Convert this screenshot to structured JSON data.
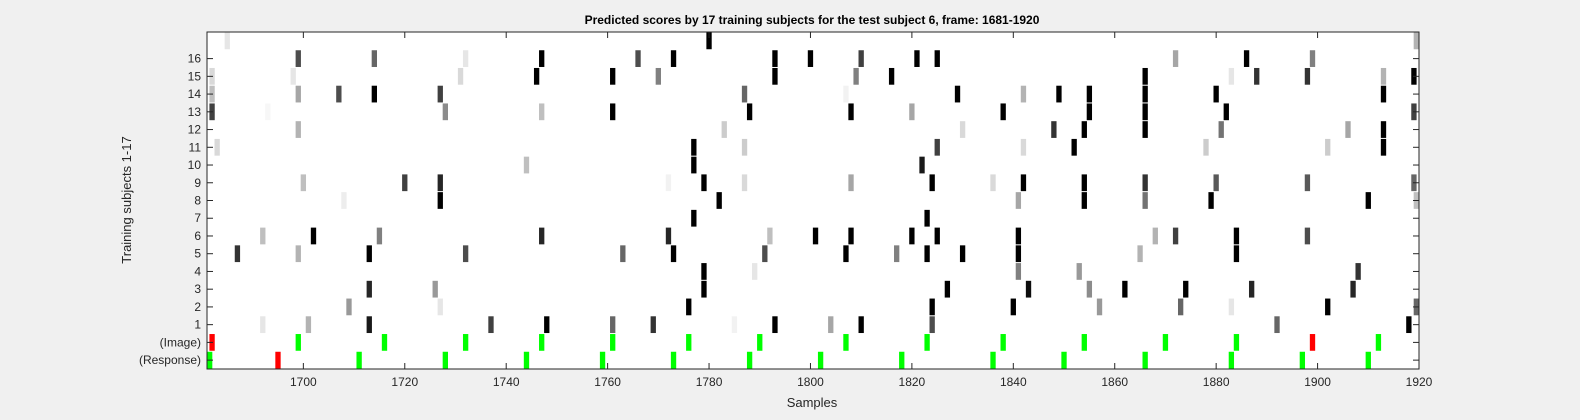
{
  "chart_data": {
    "type": "heatmap",
    "title": "Predicted scores by 17 training subjects for the test subject 6, frame: 1681-1920",
    "xlabel": "Samples",
    "ylabel": "Training subjects 1-17",
    "xlim": [
      1681,
      1920
    ],
    "x_ticks": [
      "1700",
      "1720",
      "1740",
      "1760",
      "1780",
      "1800",
      "1820",
      "1840",
      "1860",
      "1880",
      "1900",
      "1920"
    ],
    "y_tick_labels": [
      "(Response)",
      "(Image)",
      "1",
      "2",
      "3",
      "4",
      "5",
      "6",
      "7",
      "8",
      "9",
      "10",
      "11",
      "12",
      "13",
      "14",
      "15",
      "16",
      ""
    ],
    "colors": {
      "background": "#ffffff",
      "hit": "#00ff00",
      "miss": "#ff0000",
      "canvas": "#f0f0f0"
    },
    "rows": [
      {
        "label": "(Response)",
        "cells": [
          [
            1681,
            "hit"
          ],
          [
            1695,
            "miss"
          ],
          [
            1711,
            "hit"
          ],
          [
            1728,
            "hit"
          ],
          [
            1744,
            "hit"
          ],
          [
            1759,
            "hit"
          ],
          [
            1773,
            "hit"
          ],
          [
            1788,
            "hit"
          ],
          [
            1802,
            "hit"
          ],
          [
            1818,
            "hit"
          ],
          [
            1836,
            "hit"
          ],
          [
            1850,
            "hit"
          ],
          [
            1866,
            "hit"
          ],
          [
            1883,
            "hit"
          ],
          [
            1897,
            "hit"
          ],
          [
            1910,
            "hit"
          ]
        ]
      },
      {
        "label": "(Image)",
        "cells": [
          [
            1682,
            "miss"
          ],
          [
            1699,
            "hit"
          ],
          [
            1716,
            "hit"
          ],
          [
            1732,
            "hit"
          ],
          [
            1747,
            "hit"
          ],
          [
            1761,
            "hit"
          ],
          [
            1776,
            "hit"
          ],
          [
            1790,
            "hit"
          ],
          [
            1807,
            "hit"
          ],
          [
            1823,
            "hit"
          ],
          [
            1838,
            "hit"
          ],
          [
            1854,
            "hit"
          ],
          [
            1870,
            "hit"
          ],
          [
            1884,
            "hit"
          ],
          [
            1899,
            "miss"
          ],
          [
            1912,
            "hit"
          ]
        ]
      },
      {
        "label": "1",
        "cells": [
          [
            1692,
            0.1
          ],
          [
            1701,
            0.3
          ],
          [
            1713,
            0.9
          ],
          [
            1737,
            0.75
          ],
          [
            1748,
            1
          ],
          [
            1761,
            0.6
          ],
          [
            1769,
            0.8
          ],
          [
            1785,
            0.05
          ],
          [
            1793,
            1
          ],
          [
            1804,
            0.35
          ],
          [
            1810,
            1
          ],
          [
            1824,
            0.7
          ],
          [
            1892,
            0.6
          ],
          [
            1918,
            1
          ]
        ]
      },
      {
        "label": "2",
        "cells": [
          [
            1709,
            0.4
          ],
          [
            1727,
            0.1
          ],
          [
            1776,
            1
          ],
          [
            1824,
            1
          ],
          [
            1840,
            1
          ],
          [
            1857,
            0.4
          ],
          [
            1873,
            0.6
          ],
          [
            1883,
            0.1
          ],
          [
            1902,
            1
          ],
          [
            1920,
            0.6
          ]
        ]
      },
      {
        "label": "3",
        "cells": [
          [
            1713,
            0.85
          ],
          [
            1726,
            0.4
          ],
          [
            1779,
            1
          ],
          [
            1827,
            1
          ],
          [
            1843,
            0.95
          ],
          [
            1855,
            0.45
          ],
          [
            1862,
            1
          ],
          [
            1874,
            1
          ],
          [
            1887,
            0.85
          ],
          [
            1907,
            0.85
          ]
        ]
      },
      {
        "label": "4",
        "cells": [
          [
            1779,
            1
          ],
          [
            1789,
            0.1
          ],
          [
            1841,
            0.5
          ],
          [
            1853,
            0.4
          ],
          [
            1908,
            0.8
          ]
        ]
      },
      {
        "label": "5",
        "cells": [
          [
            1687,
            0.8
          ],
          [
            1699,
            0.3
          ],
          [
            1713,
            1
          ],
          [
            1732,
            0.7
          ],
          [
            1763,
            0.6
          ],
          [
            1773,
            1
          ],
          [
            1791,
            0.7
          ],
          [
            1807,
            1
          ],
          [
            1817,
            0.5
          ],
          [
            1823,
            1
          ],
          [
            1830,
            1
          ],
          [
            1841,
            1
          ],
          [
            1865,
            0.3
          ],
          [
            1884,
            1
          ]
        ]
      },
      {
        "label": "6",
        "cells": [
          [
            1692,
            0.25
          ],
          [
            1702,
            1
          ],
          [
            1715,
            0.5
          ],
          [
            1747,
            0.85
          ],
          [
            1772,
            0.85
          ],
          [
            1792,
            0.25
          ],
          [
            1801,
            1
          ],
          [
            1808,
            1
          ],
          [
            1820,
            1
          ],
          [
            1825,
            1
          ],
          [
            1841,
            1
          ],
          [
            1868,
            0.3
          ],
          [
            1872,
            0.75
          ],
          [
            1884,
            1
          ],
          [
            1898,
            0.7
          ]
        ]
      },
      {
        "label": "7",
        "cells": [
          [
            1777,
            1
          ],
          [
            1823,
            1
          ]
        ]
      },
      {
        "label": "8",
        "cells": [
          [
            1708,
            0.07
          ],
          [
            1727,
            1
          ],
          [
            1782,
            1
          ],
          [
            1841,
            0.35
          ],
          [
            1854,
            1
          ],
          [
            1866,
            0.55
          ],
          [
            1879,
            1
          ],
          [
            1910,
            1
          ],
          [
            1920,
            0.25
          ]
        ]
      },
      {
        "label": "9",
        "cells": [
          [
            1700,
            0.25
          ],
          [
            1720,
            0.75
          ],
          [
            1727,
            0.85
          ],
          [
            1772,
            0.05
          ],
          [
            1779,
            1
          ],
          [
            1787,
            0.15
          ],
          [
            1808,
            0.35
          ],
          [
            1824,
            1
          ],
          [
            1836,
            0.15
          ],
          [
            1842,
            1
          ],
          [
            1854,
            1
          ],
          [
            1866,
            0.8
          ],
          [
            1880,
            0.65
          ],
          [
            1898,
            0.65
          ],
          [
            1919,
            0.6
          ]
        ]
      },
      {
        "label": "10",
        "cells": [
          [
            1744,
            0.25
          ],
          [
            1777,
            1
          ],
          [
            1822,
            0.9
          ]
        ]
      },
      {
        "label": "11",
        "cells": [
          [
            1683,
            0.15
          ],
          [
            1777,
            1
          ],
          [
            1787,
            0.2
          ],
          [
            1825,
            0.75
          ],
          [
            1842,
            0.15
          ],
          [
            1852,
            1
          ],
          [
            1878,
            0.2
          ],
          [
            1902,
            0.2
          ],
          [
            1913,
            1
          ]
        ]
      },
      {
        "label": "12",
        "cells": [
          [
            1699,
            0.3
          ],
          [
            1783,
            0.2
          ],
          [
            1830,
            0.15
          ],
          [
            1848,
            0.8
          ],
          [
            1854,
            1
          ],
          [
            1866,
            1
          ],
          [
            1881,
            0.55
          ],
          [
            1906,
            0.35
          ],
          [
            1913,
            1
          ]
        ]
      },
      {
        "label": "13",
        "cells": [
          [
            1682,
            0.75
          ],
          [
            1693,
            0.03
          ],
          [
            1728,
            0.45
          ],
          [
            1747,
            0.25
          ],
          [
            1761,
            1
          ],
          [
            1788,
            1
          ],
          [
            1808,
            1
          ],
          [
            1820,
            0.35
          ],
          [
            1838,
            1
          ],
          [
            1855,
            1
          ],
          [
            1866,
            1
          ],
          [
            1882,
            1
          ],
          [
            1919,
            0.75
          ]
        ]
      },
      {
        "label": "14",
        "cells": [
          [
            1682,
            0.25
          ],
          [
            1699,
            0.35
          ],
          [
            1707,
            0.7
          ],
          [
            1714,
            1
          ],
          [
            1727,
            0.75
          ],
          [
            1787,
            0.6
          ],
          [
            1807,
            0.05
          ],
          [
            1829,
            1
          ],
          [
            1842,
            0.3
          ],
          [
            1849,
            1
          ],
          [
            1855,
            1
          ],
          [
            1866,
            1
          ],
          [
            1880,
            1
          ],
          [
            1913,
            1
          ]
        ]
      },
      {
        "label": "15",
        "cells": [
          [
            1682,
            0.15
          ],
          [
            1698,
            0.1
          ],
          [
            1731,
            0.15
          ],
          [
            1746,
            1
          ],
          [
            1761,
            1
          ],
          [
            1770,
            0.5
          ],
          [
            1793,
            1
          ],
          [
            1809,
            0.5
          ],
          [
            1816,
            1
          ],
          [
            1866,
            1
          ],
          [
            1883,
            0.1
          ],
          [
            1888,
            0.8
          ],
          [
            1898,
            0.8
          ],
          [
            1913,
            0.3
          ],
          [
            1919,
            1
          ]
        ]
      },
      {
        "label": "16",
        "cells": [
          [
            1699,
            0.7
          ],
          [
            1714,
            0.6
          ],
          [
            1732,
            0.1
          ],
          [
            1747,
            1
          ],
          [
            1766,
            0.7
          ],
          [
            1773,
            1
          ],
          [
            1793,
            1
          ],
          [
            1800,
            1
          ],
          [
            1810,
            0.75
          ],
          [
            1821,
            1
          ],
          [
            1825,
            1
          ],
          [
            1872,
            0.35
          ],
          [
            1886,
            1
          ],
          [
            1899,
            0.5
          ]
        ]
      },
      {
        "label": "",
        "cells": [
          [
            1685,
            0.1
          ],
          [
            1780,
            1
          ],
          [
            1920,
            0.3
          ]
        ]
      }
    ]
  }
}
